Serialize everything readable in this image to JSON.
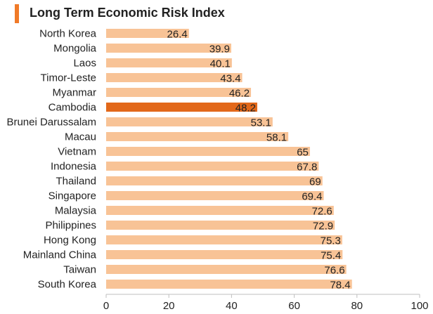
{
  "chart_data": {
    "type": "bar",
    "orientation": "horizontal",
    "title": "Long Term Economic Risk Index",
    "categories": [
      "North Korea",
      "Mongolia",
      "Laos",
      "Timor-Leste",
      "Myanmar",
      "Cambodia",
      "Brunei Darussalam",
      "Macau",
      "Vietnam",
      "Indonesia",
      "Thailand",
      "Singapore",
      "Malaysia",
      "Philippines",
      "Hong Kong",
      "Mainland China",
      "Taiwan",
      "South Korea"
    ],
    "values": [
      26.4,
      39.9,
      40.1,
      43.4,
      46.2,
      48.2,
      53.1,
      58.1,
      65,
      67.8,
      69,
      69.4,
      72.6,
      72.9,
      75.3,
      75.4,
      76.6,
      78.4
    ],
    "data_labels": [
      "26.4",
      "39.9",
      "40.1",
      "43.4",
      "46.2",
      "48.2",
      "53.1",
      "58.1",
      "65",
      "67.8",
      "69",
      "69.4",
      "72.6",
      "72.9",
      "75.3",
      "75.4",
      "76.6",
      "78.4"
    ],
    "highlight": "Cambodia",
    "xlim": [
      0,
      100
    ],
    "x_ticks": [
      0,
      20,
      40,
      60,
      80,
      100
    ],
    "grid": false,
    "colors": {
      "bar": "#f8c396",
      "highlight": "#e2681a",
      "title_accent": "#f07a28",
      "text": "#222222",
      "axis": "#bfbfbf"
    }
  }
}
